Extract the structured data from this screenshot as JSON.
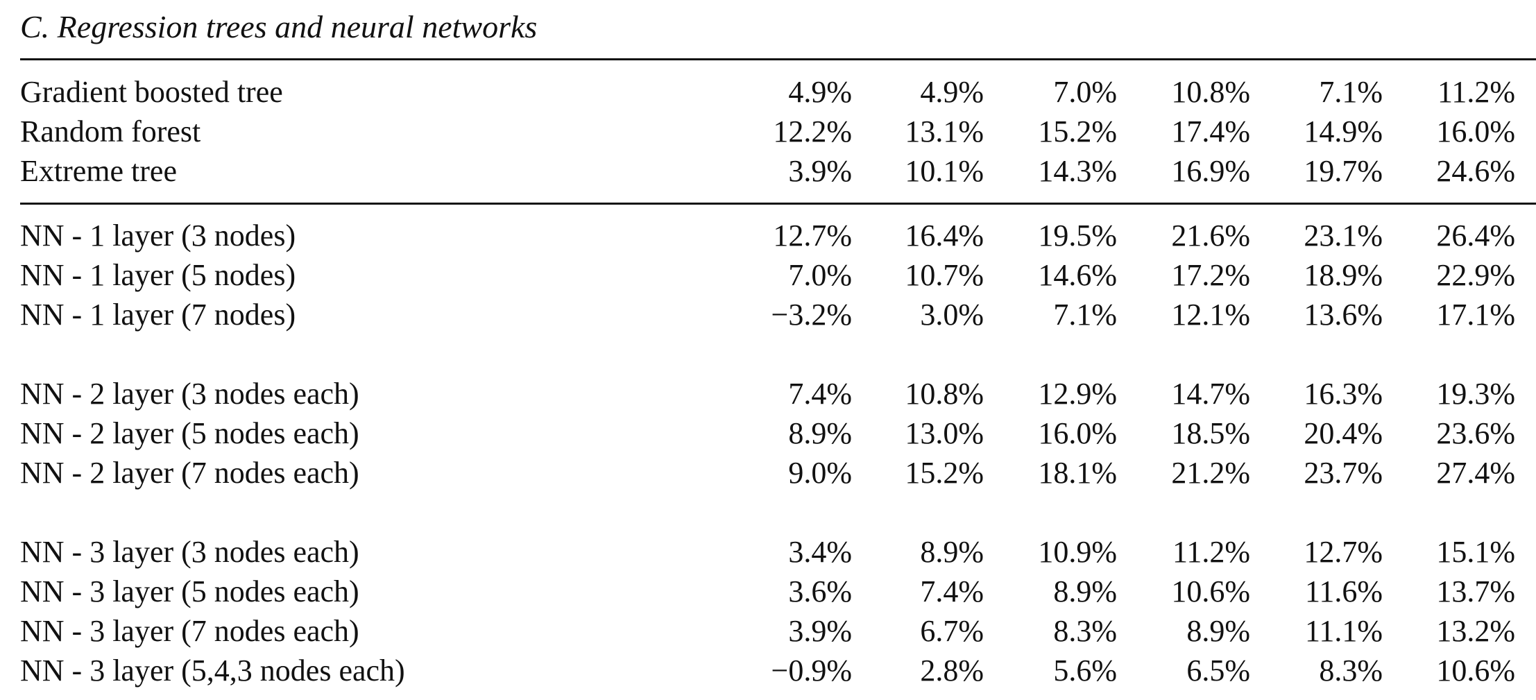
{
  "section_title": "C. Regression trees and neural networks",
  "rows": [
    {
      "label": "Gradient boosted tree",
      "values": [
        "4.9%",
        "4.9%",
        "7.0%",
        "10.8%",
        "7.1%",
        "11.2%"
      ]
    },
    {
      "label": "Random forest",
      "values": [
        "12.2%",
        "13.1%",
        "15.2%",
        "17.4%",
        "14.9%",
        "16.0%"
      ]
    },
    {
      "label": "Extreme tree",
      "values": [
        "3.9%",
        "10.1%",
        "14.3%",
        "16.9%",
        "19.7%",
        "24.6%"
      ]
    },
    {
      "label": "NN - 1 layer (3 nodes)",
      "values": [
        "12.7%",
        "16.4%",
        "19.5%",
        "21.6%",
        "23.1%",
        "26.4%"
      ]
    },
    {
      "label": "NN - 1 layer (5 nodes)",
      "values": [
        "7.0%",
        "10.7%",
        "14.6%",
        "17.2%",
        "18.9%",
        "22.9%"
      ]
    },
    {
      "label": "NN - 1 layer (7 nodes)",
      "values": [
        "−3.2%",
        "3.0%",
        "7.1%",
        "12.1%",
        "13.6%",
        "17.1%"
      ]
    },
    {
      "label": "NN - 2 layer (3 nodes each)",
      "values": [
        "7.4%",
        "10.8%",
        "12.9%",
        "14.7%",
        "16.3%",
        "19.3%"
      ]
    },
    {
      "label": "NN - 2 layer (5 nodes each)",
      "values": [
        "8.9%",
        "13.0%",
        "16.0%",
        "18.5%",
        "20.4%",
        "23.6%"
      ]
    },
    {
      "label": "NN - 2 layer (7 nodes each)",
      "values": [
        "9.0%",
        "15.2%",
        "18.1%",
        "21.2%",
        "23.7%",
        "27.4%"
      ]
    },
    {
      "label": "NN - 3 layer (3 nodes each)",
      "values": [
        "3.4%",
        "8.9%",
        "10.9%",
        "11.2%",
        "12.7%",
        "15.1%"
      ]
    },
    {
      "label": "NN - 3 layer (5 nodes each)",
      "values": [
        "3.6%",
        "7.4%",
        "8.9%",
        "10.6%",
        "11.6%",
        "13.7%"
      ]
    },
    {
      "label": "NN - 3 layer (7 nodes each)",
      "values": [
        "3.9%",
        "6.7%",
        "8.3%",
        "8.9%",
        "11.1%",
        "13.2%"
      ]
    },
    {
      "label": "NN - 3 layer (5,4,3 nodes each)",
      "values": [
        "−0.9%",
        "2.8%",
        "5.6%",
        "6.5%",
        "8.3%",
        "10.6%"
      ]
    }
  ]
}
